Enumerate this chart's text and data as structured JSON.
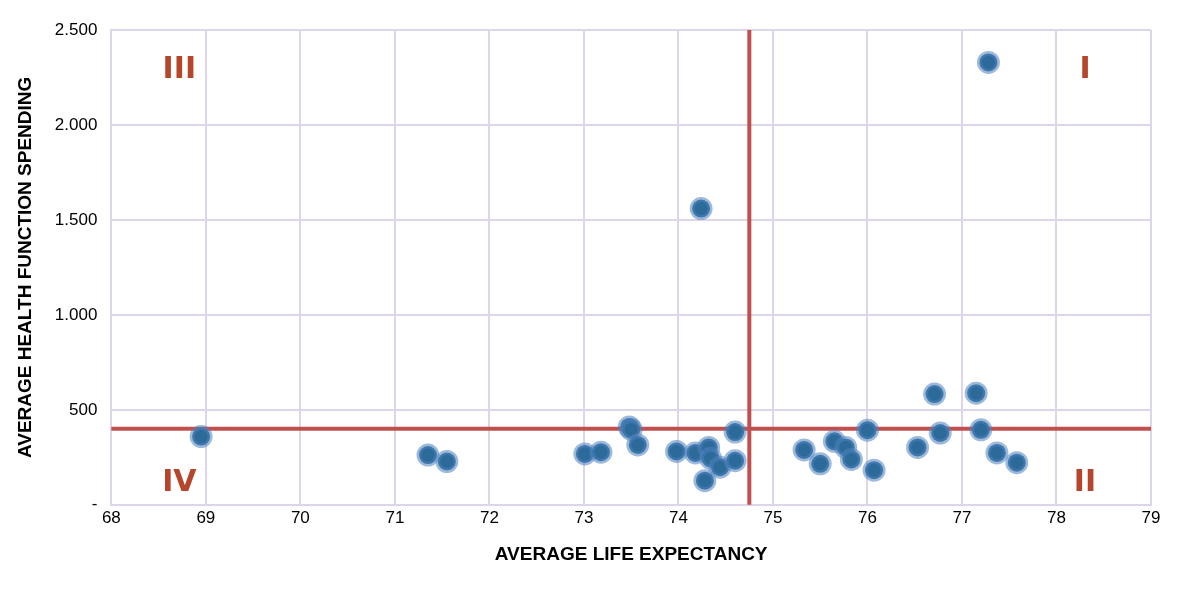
{
  "chart_data": {
    "type": "scatter",
    "xlabel": "AVERAGE LIFE EXPECTANCY",
    "ylabel": "AVERAGE HEALTH FUNCTION SPENDING",
    "x": [
      68.95,
      71.35,
      71.55,
      73.01,
      73.18,
      73.48,
      73.5,
      73.57,
      73.98,
      74.18,
      74.32,
      74.34,
      74.44,
      74.6,
      74.28,
      74.6,
      74.24,
      75.33,
      75.5,
      75.65,
      75.77,
      75.83,
      76.0,
      76.07,
      76.53,
      76.71,
      76.77,
      77.15,
      77.2,
      77.37,
      77.58,
      77.28
    ],
    "series": [
      {
        "color": "#2b6a99",
        "values": [
          359,
          262,
          228,
          268,
          277,
          410,
          397,
          315,
          281,
          273,
          302,
          245,
          198,
          232,
          127,
          383,
          1560,
          289,
          216,
          334,
          302,
          239,
          393,
          182,
          302,
          583,
          378,
          588,
          395,
          273,
          222,
          2329
        ]
      }
    ],
    "xlim": [
      68,
      79
    ],
    "xticks": [
      68,
      69,
      70,
      71,
      72,
      73,
      74,
      75,
      76,
      77,
      78,
      79
    ],
    "ylim": [
      0,
      2500
    ],
    "yticks": [
      {
        "value": 0,
        "label": "-"
      },
      500,
      {
        "value": 1000,
        "label": "1.000"
      },
      {
        "value": 1500,
        "label": "1.500"
      },
      {
        "value": 2000,
        "label": "2.000"
      },
      {
        "value": 2500,
        "label": "2.500"
      }
    ],
    "grid": true,
    "legend": false,
    "marker": "circle",
    "ref_lines": [
      {
        "axis": "x",
        "value": 74.75,
        "color": "#c0504d"
      },
      {
        "axis": "y",
        "value": 400,
        "color": "#c0504d"
      }
    ],
    "annotations": [
      "III",
      "I",
      "IV",
      "II"
    ]
  }
}
